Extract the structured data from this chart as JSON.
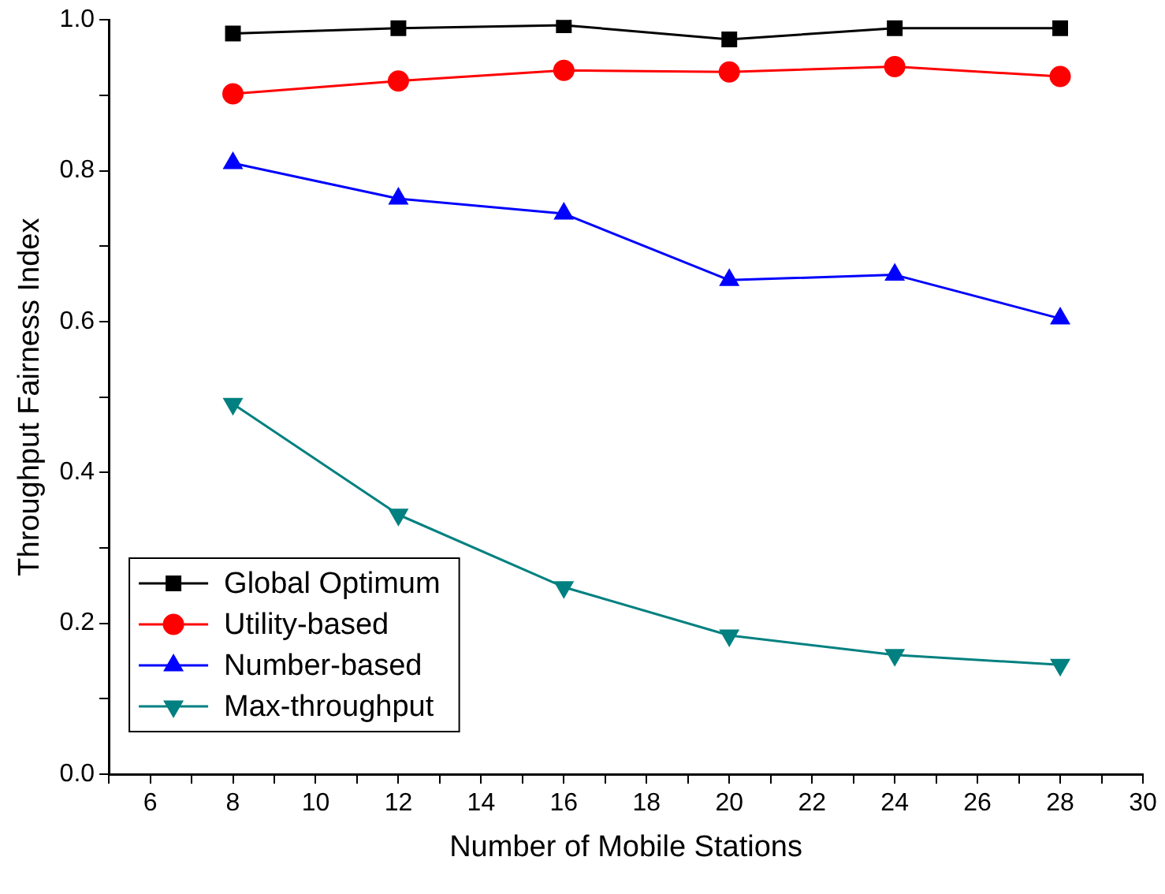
{
  "chart_data": {
    "type": "line",
    "xlabel": "Number of Mobile Stations",
    "ylabel": "Throughput Fairness Index",
    "x": [
      8,
      12,
      16,
      20,
      24,
      28
    ],
    "series": [
      {
        "name": "Global Optimum",
        "color": "#000000",
        "marker": "square",
        "values": [
          0.982,
          0.989,
          0.993,
          0.974,
          0.989,
          0.989
        ]
      },
      {
        "name": "Utility-based",
        "color": "#ff0000",
        "marker": "circle",
        "values": [
          0.902,
          0.919,
          0.933,
          0.931,
          0.938,
          0.925
        ]
      },
      {
        "name": "Number-based",
        "color": "#0000ff",
        "marker": "triangle",
        "values": [
          0.81,
          0.763,
          0.743,
          0.655,
          0.662,
          0.604
        ]
      },
      {
        "name": "Max-throughput",
        "color": "#008080",
        "marker": "triangle-down",
        "values": [
          0.491,
          0.344,
          0.248,
          0.184,
          0.158,
          0.145
        ]
      }
    ],
    "xlim": [
      5,
      30
    ],
    "xticks": [
      {
        "value": 5,
        "label": null
      },
      6,
      {
        "value": 7,
        "label": null
      },
      8,
      {
        "value": 9,
        "label": null
      },
      10,
      {
        "value": 11,
        "label": null
      },
      12,
      {
        "value": 13,
        "label": null
      },
      14,
      {
        "value": 15,
        "label": null
      },
      16,
      {
        "value": 17,
        "label": null
      },
      18,
      {
        "value": 19,
        "label": null
      },
      20,
      {
        "value": 21,
        "label": null
      },
      22,
      {
        "value": 23,
        "label": null
      },
      24,
      {
        "value": 25,
        "label": null
      },
      26,
      {
        "value": 27,
        "label": null
      },
      28,
      {
        "value": 29,
        "label": null
      },
      30
    ],
    "ylim": [
      0,
      1.0
    ],
    "yticks": [
      {
        "value": 0,
        "label": "0.0"
      },
      {
        "value": 0.1,
        "label": null
      },
      {
        "value": 0.2,
        "label": "0.2"
      },
      {
        "value": 0.3,
        "label": null
      },
      {
        "value": 0.4,
        "label": "0.4"
      },
      {
        "value": 0.5,
        "label": null
      },
      {
        "value": 0.6,
        "label": "0.6"
      },
      {
        "value": 0.7,
        "label": null
      },
      {
        "value": 0.8,
        "label": "0.8"
      },
      {
        "value": 0.9,
        "label": null
      },
      {
        "value": 1.0,
        "label": "1.0"
      }
    ],
    "grid": false,
    "legend": "bottom left",
    "line_style": "solid"
  }
}
